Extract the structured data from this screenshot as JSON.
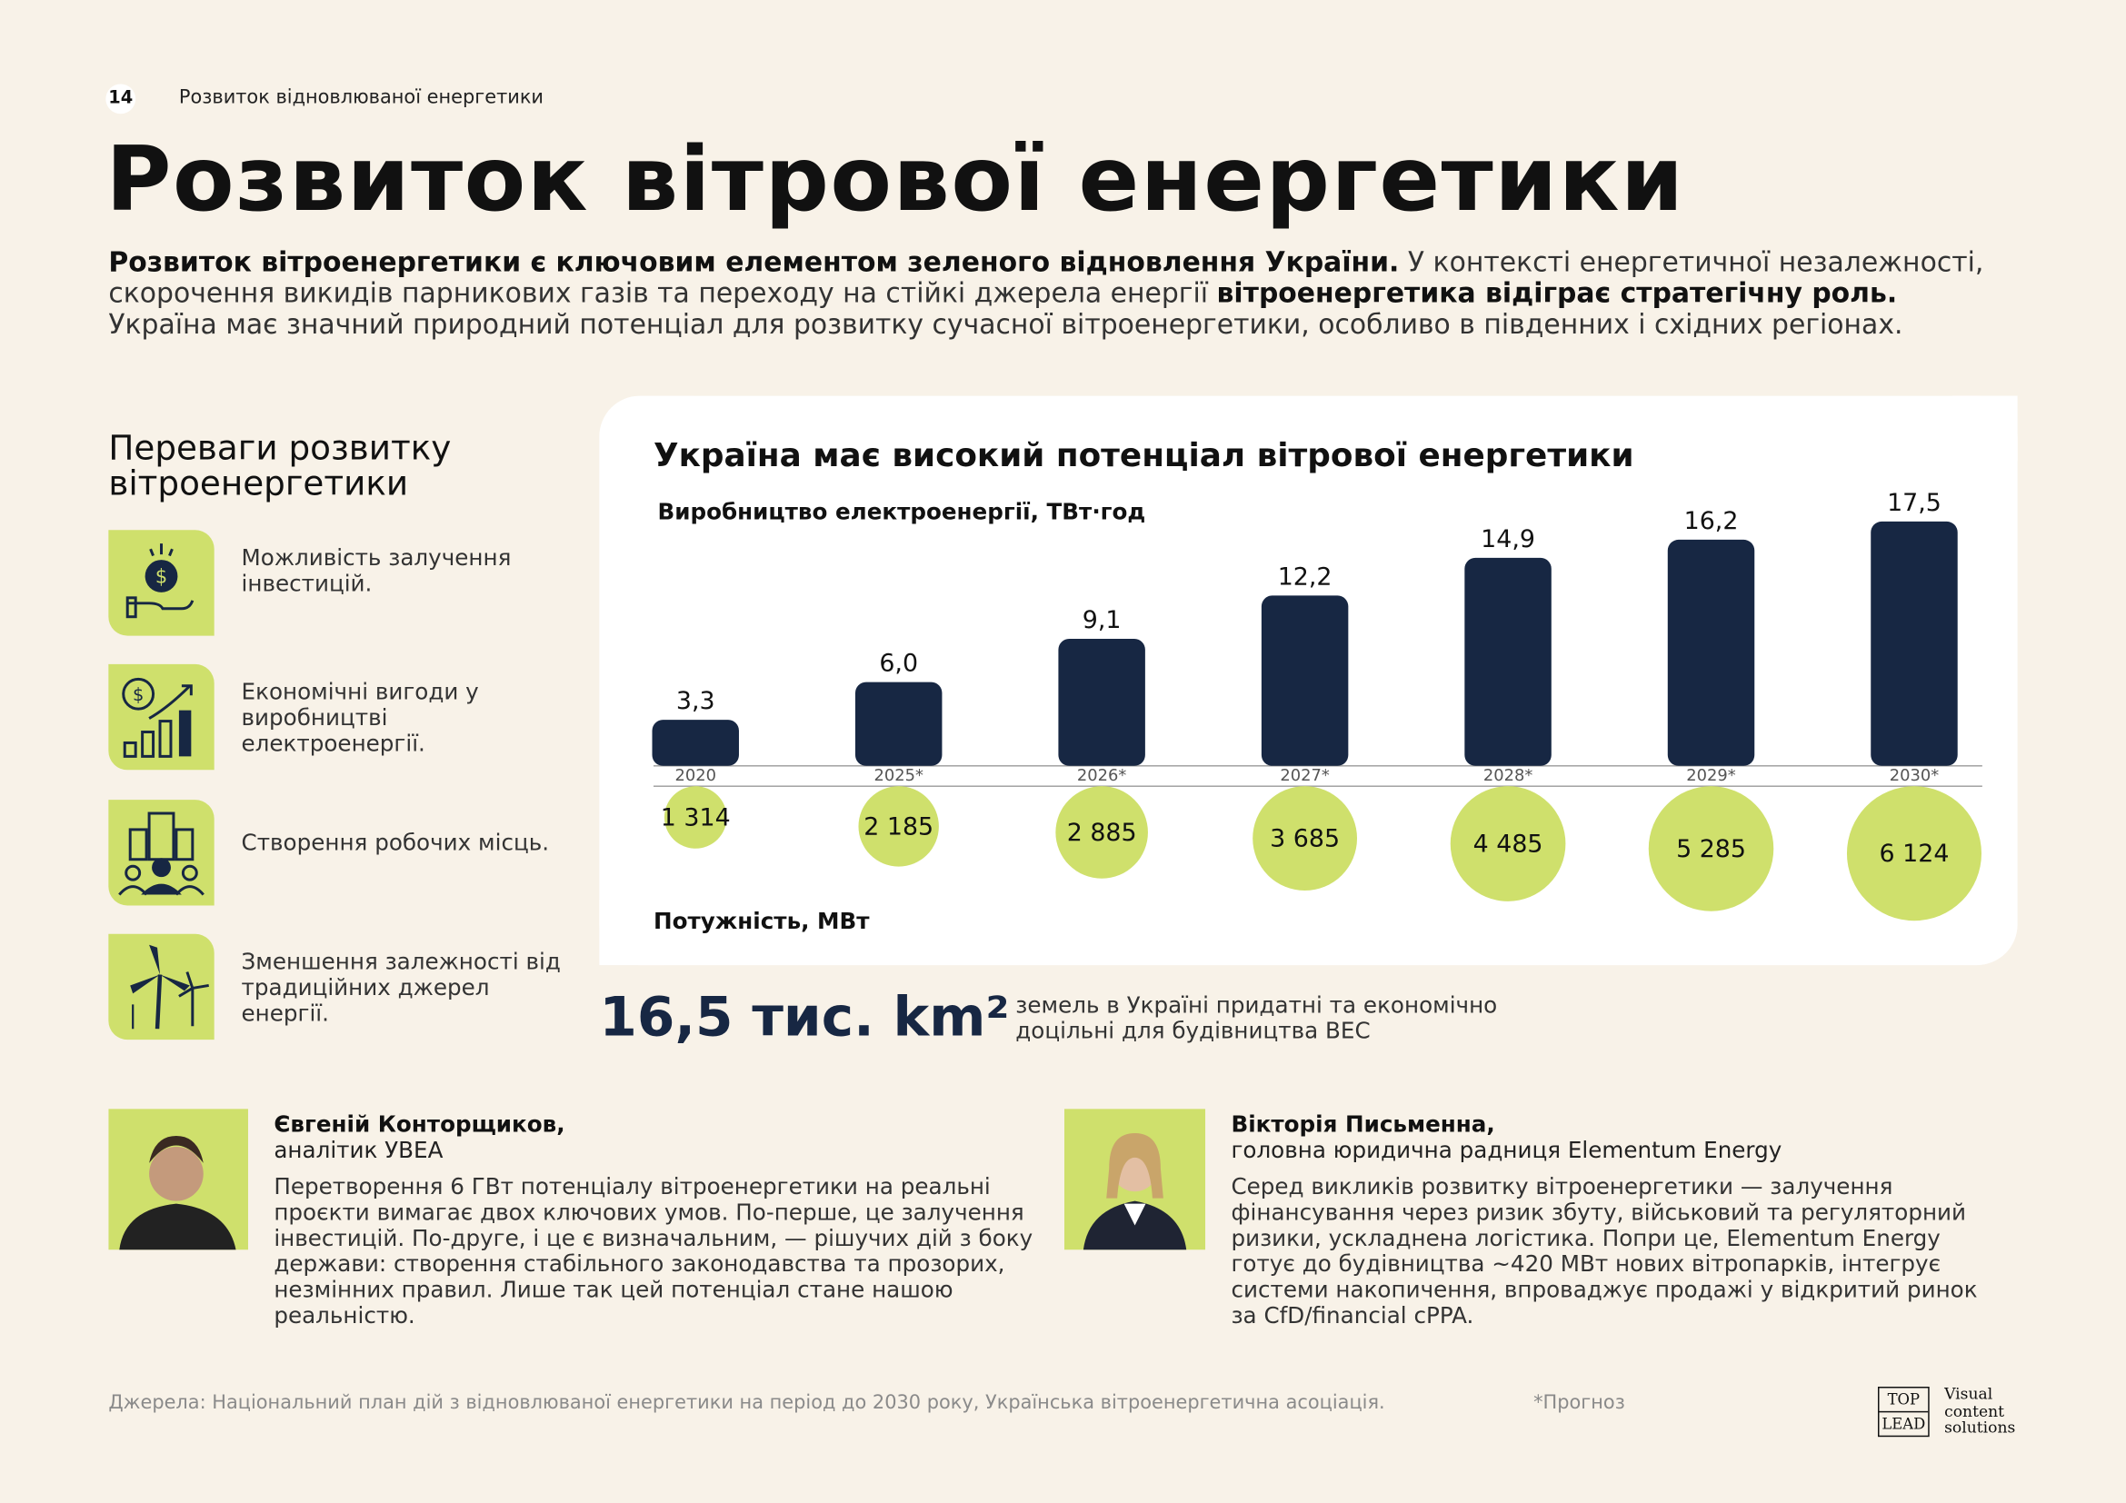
{
  "header": {
    "page_number": "14",
    "section": "Розвиток відновлюваної енергетики"
  },
  "title": "Розвиток вітрової енергетики",
  "intro": [
    "Розвиток вітроенергетики є ключовим елементом зеленого відновлення України.",
    "У контексті енергетичної незалежності, скорочення викидів парникових газів та переходу на стійкі джерела енергії",
    "вітроенергетика відіграє стратегічну роль.",
    "Україна має значний природний потенціал для розвитку сучасної вітроенергетики, особливо в південних і східних регіонах."
  ],
  "benefits": {
    "title": "Переваги розвитку вітроенергетики",
    "items": [
      "Можливість залучення інвестицій.",
      "Економічні вигоди у виробництві електроенергії.",
      "Створення робочих місць.",
      "Зменшення залежності від традиційних джерел енергії."
    ]
  },
  "chart_data": {
    "type": "bar",
    "title": "Україна має високий потенціал вітрової енергетики",
    "categories": [
      "2020",
      "2025*",
      "2026*",
      "2027*",
      "2028*",
      "2029*",
      "2030*"
    ],
    "series": [
      {
        "name": "Виробництво електроенергії, ТВт·год",
        "color": "#172743",
        "mark": "bar",
        "values": [
          3.3,
          6.0,
          9.1,
          12.2,
          14.9,
          16.2,
          17.5
        ],
        "value_labels": [
          "3,3",
          "6,0",
          "9,1",
          "12,2",
          "14,9",
          "16,2",
          "17,5"
        ]
      },
      {
        "name": "Потужність, МВт",
        "color": "#cfe06c",
        "mark": "circle",
        "values": [
          1314,
          2185,
          2885,
          3685,
          4485,
          5285,
          6124
        ],
        "value_labels": [
          "1 314",
          "2 185",
          "2 885",
          "3 685",
          "4 485",
          "5 285",
          "6 124"
        ]
      }
    ]
  },
  "stat": {
    "value": "16,5 тис. km²",
    "text": "земель в Україні придатні та економічно доцільні для будівництва ВЕС"
  },
  "quotes": [
    {
      "name": "Євгеній Конторщиков,",
      "role": "аналітик УВЕА",
      "text": "Перетворення 6 ГВт потенціалу вітроенергетики на реальні проєкти вимагає двох ключових умов. По-перше, це залучення інвестицій. По-друге, і це є визначальним, — рішучих дій з боку держави: створення стабільного законодавства та прозорих, незмінних правил. Лише так цей потенціал стане нашою реальністю."
    },
    {
      "name": "Вікторія Письменна,",
      "role": "головна юридична радниця Elementum Energy",
      "text": "Серед викликів розвитку вітроенергетики — залучення фінансування через ризик збуту, військовий та регуляторний ризики, ускладнена логістика. Попри це, Elementum Energy готує до будівництва ~420 МВт нових вітропарків, інтегрує системи накопичення, впроваджує продажі у відкритий ринок за CfD/financial cPPA."
    }
  ],
  "footer": {
    "sources": "Джерела: Національний план дій з відновлюваної енергетики на період до 2030 року, Українська вітроенергетична асоціація.",
    "note": "*Прогноз"
  },
  "logo": {
    "top": "TOP",
    "bottom": "LEAD",
    "text": "Visual content solutions"
  }
}
